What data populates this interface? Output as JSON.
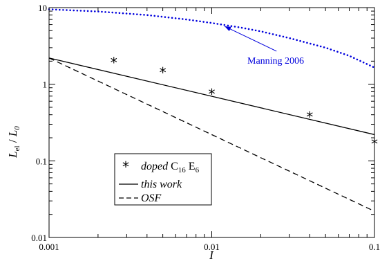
{
  "chart_data": {
    "type": "line",
    "xscale": "log",
    "yscale": "log",
    "xlim": [
      0.001,
      0.1
    ],
    "ylim": [
      0.01,
      10
    ],
    "x_ticks": [
      "0.001",
      "0.01",
      "0.1"
    ],
    "y_ticks": [
      "0.01",
      "0.1",
      "1",
      "10"
    ],
    "xlabel": "I",
    "ylabel": {
      "L1": "L",
      "sub1": "el",
      "sep": " / ",
      "L2": "L",
      "sub2": "0"
    },
    "grid": false,
    "legend_position": "lower-left",
    "series": [
      {
        "name": "doped C16 E6",
        "legend": {
          "italic": "doped",
          "C": "C",
          "sub_c": "16",
          "E": "E",
          "sub_e": "6"
        },
        "style": "markers",
        "marker": "asterisk",
        "color": "#000000",
        "x": [
          0.0025,
          0.005,
          0.01,
          0.04,
          0.1
        ],
        "y": [
          1.95,
          1.45,
          0.76,
          0.38,
          0.17
        ]
      },
      {
        "name": "this work",
        "style": "solid",
        "color": "#000000",
        "x": [
          0.001,
          0.1
        ],
        "y": [
          2.2,
          0.22
        ]
      },
      {
        "name": "OSF",
        "style": "dashed",
        "color": "#000000",
        "x": [
          0.001,
          0.1
        ],
        "y": [
          2.2,
          0.022
        ]
      },
      {
        "name": "Manning 2006",
        "style": "dotted",
        "color": "#0000dd",
        "x": [
          0.001,
          0.002,
          0.004,
          0.007,
          0.01,
          0.015,
          0.02,
          0.03,
          0.05,
          0.07,
          0.1
        ],
        "y": [
          9.5,
          8.9,
          8.0,
          7.0,
          6.3,
          5.5,
          4.9,
          4.0,
          3.0,
          2.35,
          1.65
        ]
      }
    ],
    "annotation": {
      "text": "Manning 2006",
      "color": "#0000dd",
      "arrow_from": [
        0.025,
        2.7
      ],
      "arrow_to": [
        0.012,
        5.7
      ]
    }
  }
}
